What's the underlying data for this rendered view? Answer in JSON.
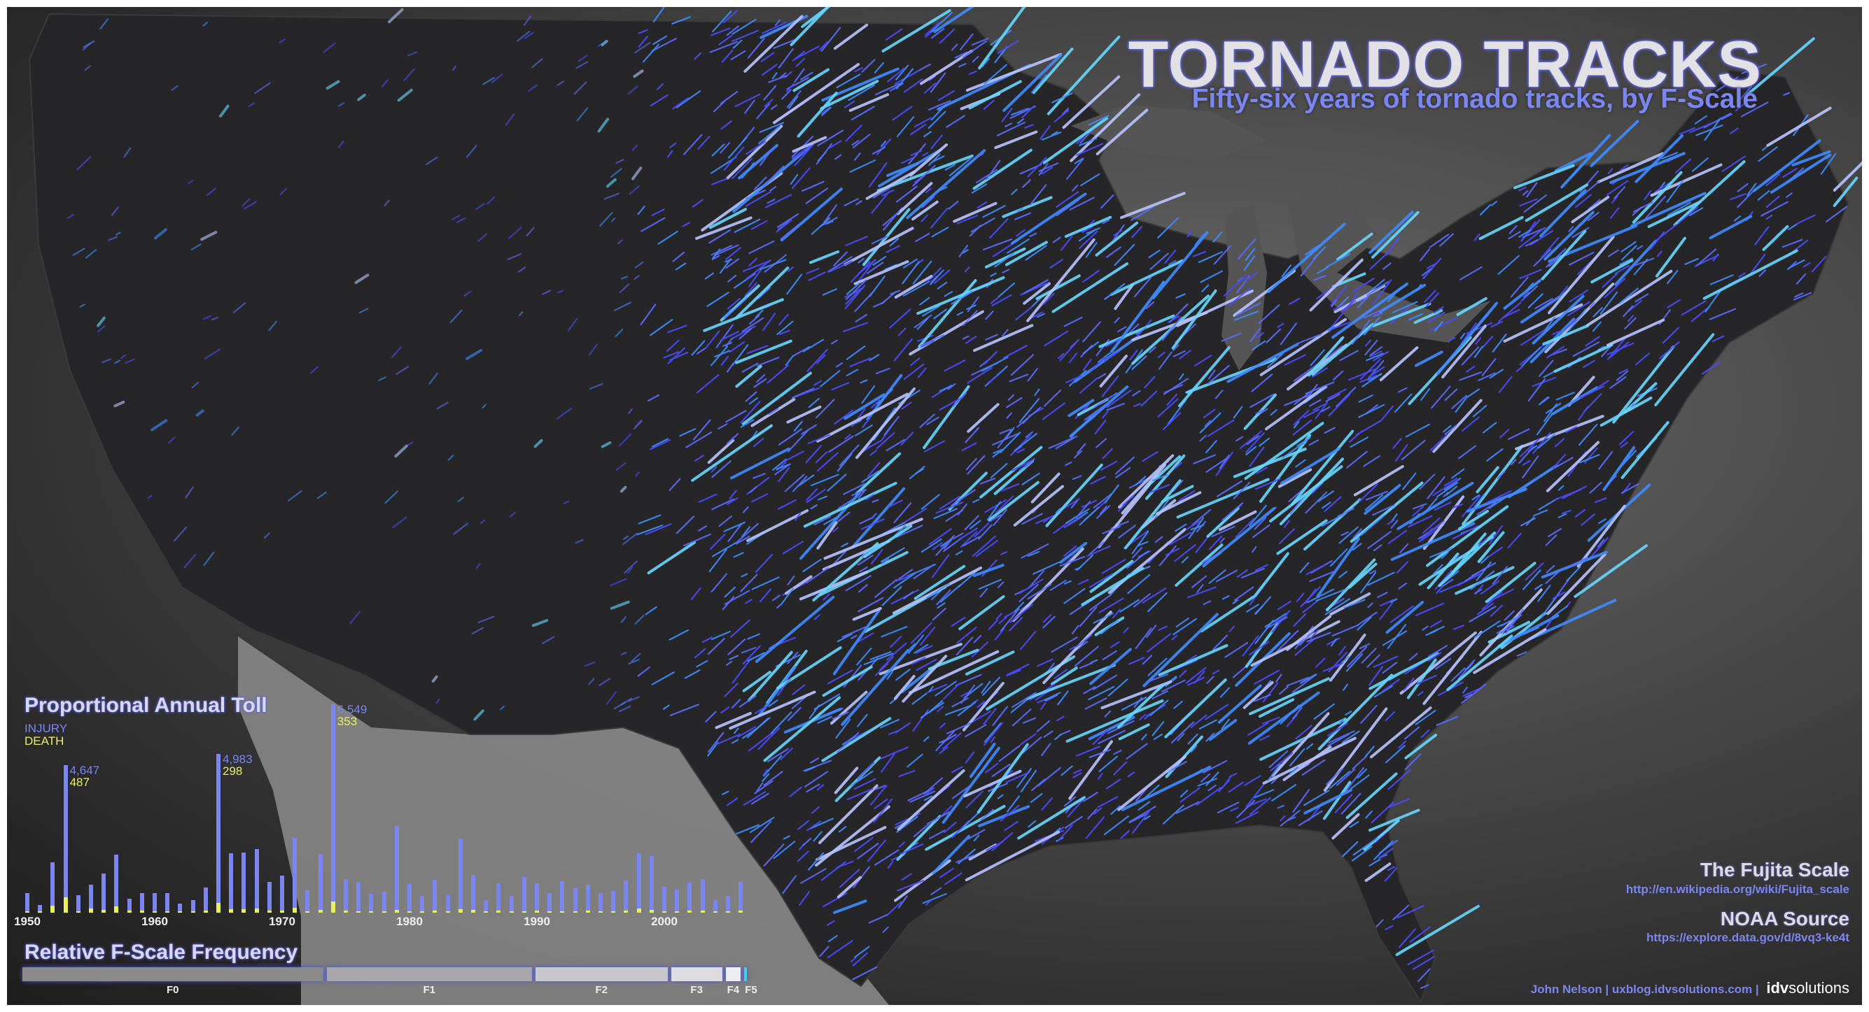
{
  "header": {
    "title": "TORNADO TRACKS",
    "subtitle": "Fifty-six years of tornado tracks, by F-Scale"
  },
  "colors": {
    "injury": "#7b86f2",
    "death": "#e8f060",
    "track_colors": [
      "#4b4bff",
      "#5a6cff",
      "#3f8cff",
      "#66d8ff",
      "#b8c4ff"
    ]
  },
  "toll_chart": {
    "title": "Proportional  Annual Toll",
    "legend_injury": "INJURY",
    "legend_death": "DEATH",
    "annotations": [
      {
        "year": 1953,
        "injury": "4,647",
        "death": "487"
      },
      {
        "year": 1965,
        "injury": "4,983",
        "death": "298"
      },
      {
        "year": 1974,
        "injury": "6,549",
        "death": "353"
      }
    ],
    "year_ticks": [
      "1950",
      "1960",
      "1970",
      "1980",
      "1990",
      "2000"
    ]
  },
  "chart_data": {
    "type": "bar",
    "title": "Proportional  Annual Toll",
    "xlabel": "",
    "ylabel": "",
    "x": [
      1950,
      1951,
      1952,
      1953,
      1954,
      1955,
      1956,
      1957,
      1958,
      1959,
      1960,
      1961,
      1962,
      1963,
      1964,
      1965,
      1966,
      1967,
      1968,
      1969,
      1970,
      1971,
      1972,
      1973,
      1974,
      1975,
      1976,
      1977,
      1978,
      1979,
      1980,
      1981,
      1982,
      1983,
      1984,
      1985,
      1986,
      1987,
      1988,
      1989,
      1990,
      1991,
      1992,
      1993,
      1994,
      1995,
      1996,
      1997,
      1998,
      1999,
      2000,
      2001,
      2002,
      2003,
      2004,
      2005,
      2006
    ],
    "series": [
      {
        "name": "INJURY",
        "values": [
          607,
          234,
          1573,
          4647,
          540,
          880,
          1240,
          1815,
          450,
          620,
          620,
          605,
          290,
          390,
          785,
          4983,
          1860,
          1890,
          1990,
          970,
          1175,
          2350,
          705,
          1820,
          6549,
          1060,
          970,
          585,
          650,
          2730,
          910,
          520,
          1040,
          555,
          2325,
          1180,
          395,
          920,
          520,
          1110,
          920,
          605,
          985,
          770,
          880,
          610,
          675,
          1020,
          1860,
          1785,
          805,
          715,
          935,
          1060,
          395,
          520,
          965
        ]
      },
      {
        "name": "DEATH",
        "values": [
          30,
          30,
          230,
          487,
          35,
          125,
          80,
          190,
          65,
          55,
          45,
          50,
          30,
          30,
          75,
          298,
          100,
          115,
          130,
          65,
          75,
          155,
          30,
          85,
          353,
          60,
          45,
          45,
          50,
          85,
          30,
          25,
          65,
          35,
          120,
          95,
          15,
          60,
          30,
          50,
          55,
          40,
          40,
          35,
          70,
          30,
          25,
          65,
          130,
          95,
          40,
          40,
          55,
          55,
          35,
          40,
          65
        ]
      }
    ],
    "legend": "top-left",
    "grid": false
  },
  "fscale": {
    "title": "Relative F-Scale Frequency",
    "segments": [
      {
        "label": "F0",
        "share": 0.41,
        "color": "#8a8a8a"
      },
      {
        "label": "F1",
        "share": 0.28,
        "color": "#a8a8ac"
      },
      {
        "label": "F2",
        "share": 0.18,
        "color": "#c8c8cc"
      },
      {
        "label": "F3",
        "share": 0.07,
        "color": "#dcdce0"
      },
      {
        "label": "F4",
        "share": 0.02,
        "color": "#eeeef0"
      },
      {
        "label": "F5",
        "share": 0.004,
        "color": "#40d0e0"
      }
    ]
  },
  "sources": {
    "fujita_title": "The Fujita Scale",
    "fujita_url": "http://en.wikipedia.org/wiki/Fujita_scale",
    "noaa_title": "NOAA Source",
    "noaa_url": "https://explore.data.gov/d/8vq3-ke4t",
    "credit": "John Nelson | uxblog.idvsolutions.com |",
    "logo_bold": "idv",
    "logo_light": "solutions"
  }
}
